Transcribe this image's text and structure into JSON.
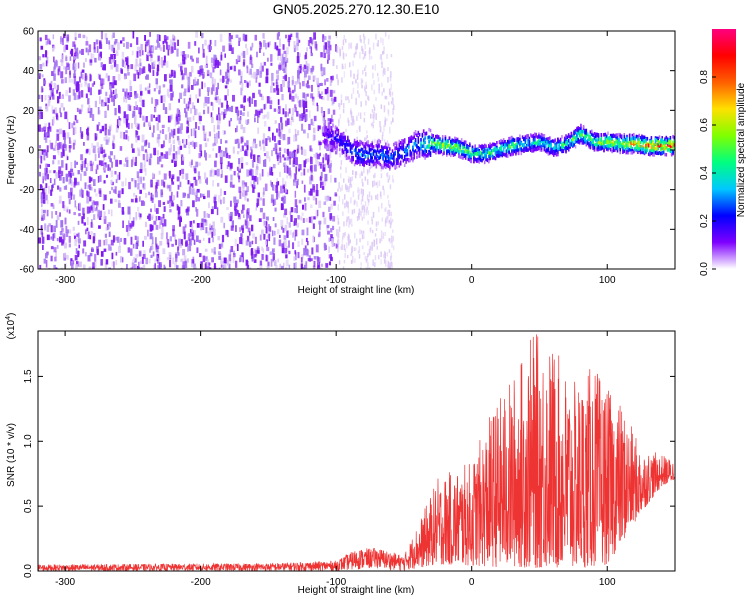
{
  "title": "GN05.2025.270.12.30.E10",
  "colors": {
    "line": "#ee3333",
    "axis": "#000000",
    "spectro_dark": "#7b16f0",
    "spectro_light": "#d9c4f5"
  },
  "chart_data": [
    {
      "type": "heatmap",
      "name": "spectrogram",
      "xlabel": "Height of straight line (km)",
      "ylabel": "Frequency (Hz)",
      "xlim": [
        -320,
        150
      ],
      "ylim": [
        -60,
        60
      ],
      "xticks": [
        -300,
        -200,
        -100,
        0,
        100
      ],
      "yticks": [
        -60,
        -40,
        -20,
        0,
        20,
        40,
        60
      ],
      "colorbar": {
        "label": "Normalized spectral amplitude",
        "range": [
          0.0,
          1.0
        ],
        "ticks": [
          0.0,
          0.2,
          0.4,
          0.6,
          0.8
        ],
        "tick_labels": [
          "0.0",
          "0.2",
          "0.4",
          "0.6",
          "0.8"
        ],
        "colormap": [
          "#ffffff",
          "#7e00ff",
          "#0000ff",
          "#00c8ff",
          "#00ff80",
          "#80ff00",
          "#ffe000",
          "#ff6000",
          "#ff0000",
          "#ff0080"
        ]
      },
      "noise_region": {
        "x": [
          -320,
          -100
        ],
        "y": [
          -60,
          60
        ],
        "amplitude": 0.1
      },
      "faint_strip": {
        "x": [
          -100,
          -58
        ],
        "y": [
          -60,
          60
        ],
        "amplitude": 0.04
      },
      "signal_ridge": [
        {
          "x": -110,
          "f": 7,
          "a": 0.2
        },
        {
          "x": -100,
          "f": 6,
          "a": 0.25
        },
        {
          "x": -90,
          "f": 0,
          "a": 0.3
        },
        {
          "x": -80,
          "f": -3,
          "a": 0.35
        },
        {
          "x": -70,
          "f": -2,
          "a": 0.35
        },
        {
          "x": -60,
          "f": -4,
          "a": 0.3
        },
        {
          "x": -50,
          "f": -1,
          "a": 0.35
        },
        {
          "x": -40,
          "f": 3,
          "a": 0.4
        },
        {
          "x": -30,
          "f": 3,
          "a": 0.65
        },
        {
          "x": -20,
          "f": 2,
          "a": 0.7
        },
        {
          "x": -10,
          "f": 1,
          "a": 0.65
        },
        {
          "x": 0,
          "f": -2,
          "a": 0.55
        },
        {
          "x": 10,
          "f": -2,
          "a": 0.55
        },
        {
          "x": 20,
          "f": 0,
          "a": 0.55
        },
        {
          "x": 30,
          "f": 2,
          "a": 0.6
        },
        {
          "x": 40,
          "f": 3,
          "a": 0.45
        },
        {
          "x": 50,
          "f": 4,
          "a": 0.5
        },
        {
          "x": 60,
          "f": 1,
          "a": 0.45
        },
        {
          "x": 70,
          "f": 3,
          "a": 0.55
        },
        {
          "x": 80,
          "f": 8,
          "a": 0.6
        },
        {
          "x": 90,
          "f": 4,
          "a": 0.65
        },
        {
          "x": 100,
          "f": 4,
          "a": 0.7
        },
        {
          "x": 110,
          "f": 3,
          "a": 0.75
        },
        {
          "x": 120,
          "f": 3,
          "a": 0.85
        },
        {
          "x": 130,
          "f": 2,
          "a": 0.95
        },
        {
          "x": 140,
          "f": 2,
          "a": 0.95
        },
        {
          "x": 150,
          "f": 2,
          "a": 0.95
        }
      ]
    },
    {
      "type": "line",
      "name": "snr",
      "xlabel": "Height of straight line (km)",
      "ylabel": "SNR (10 * v/v)",
      "scale_label": "(x10",
      "scale_exponent": "4",
      "xlim": [
        -320,
        150
      ],
      "ylim": [
        0,
        1.85
      ],
      "xticks": [
        -300,
        -200,
        -100,
        0,
        100
      ],
      "yticks": [
        0.0,
        0.5,
        1.0,
        1.5
      ],
      "ytick_labels": [
        "0.0",
        "0.5",
        "1.0",
        "1.5"
      ],
      "series": [
        {
          "name": "SNR",
          "envelope": [
            {
              "x": -320,
              "lo": 0.0,
              "hi": 0.05
            },
            {
              "x": -150,
              "lo": 0.0,
              "hi": 0.06
            },
            {
              "x": -100,
              "lo": 0.0,
              "hi": 0.08
            },
            {
              "x": -85,
              "lo": 0.01,
              "hi": 0.17
            },
            {
              "x": -70,
              "lo": 0.02,
              "hi": 0.18
            },
            {
              "x": -50,
              "lo": 0.0,
              "hi": 0.12
            },
            {
              "x": -40,
              "lo": 0.02,
              "hi": 0.35
            },
            {
              "x": -25,
              "lo": 0.05,
              "hi": 0.72
            },
            {
              "x": 0,
              "lo": 0.04,
              "hi": 0.85
            },
            {
              "x": 15,
              "lo": 0.03,
              "hi": 1.25
            },
            {
              "x": 30,
              "lo": 0.03,
              "hi": 1.5
            },
            {
              "x": 45,
              "lo": 0.02,
              "hi": 1.85
            },
            {
              "x": 60,
              "lo": 0.02,
              "hi": 1.75
            },
            {
              "x": 75,
              "lo": 0.02,
              "hi": 1.45
            },
            {
              "x": 90,
              "lo": 0.03,
              "hi": 1.6
            },
            {
              "x": 100,
              "lo": 0.05,
              "hi": 1.4
            },
            {
              "x": 110,
              "lo": 0.2,
              "hi": 1.3
            },
            {
              "x": 125,
              "lo": 0.45,
              "hi": 0.95
            },
            {
              "x": 140,
              "lo": 0.65,
              "hi": 0.9
            },
            {
              "x": 150,
              "lo": 0.7,
              "hi": 0.85
            }
          ]
        }
      ]
    }
  ]
}
